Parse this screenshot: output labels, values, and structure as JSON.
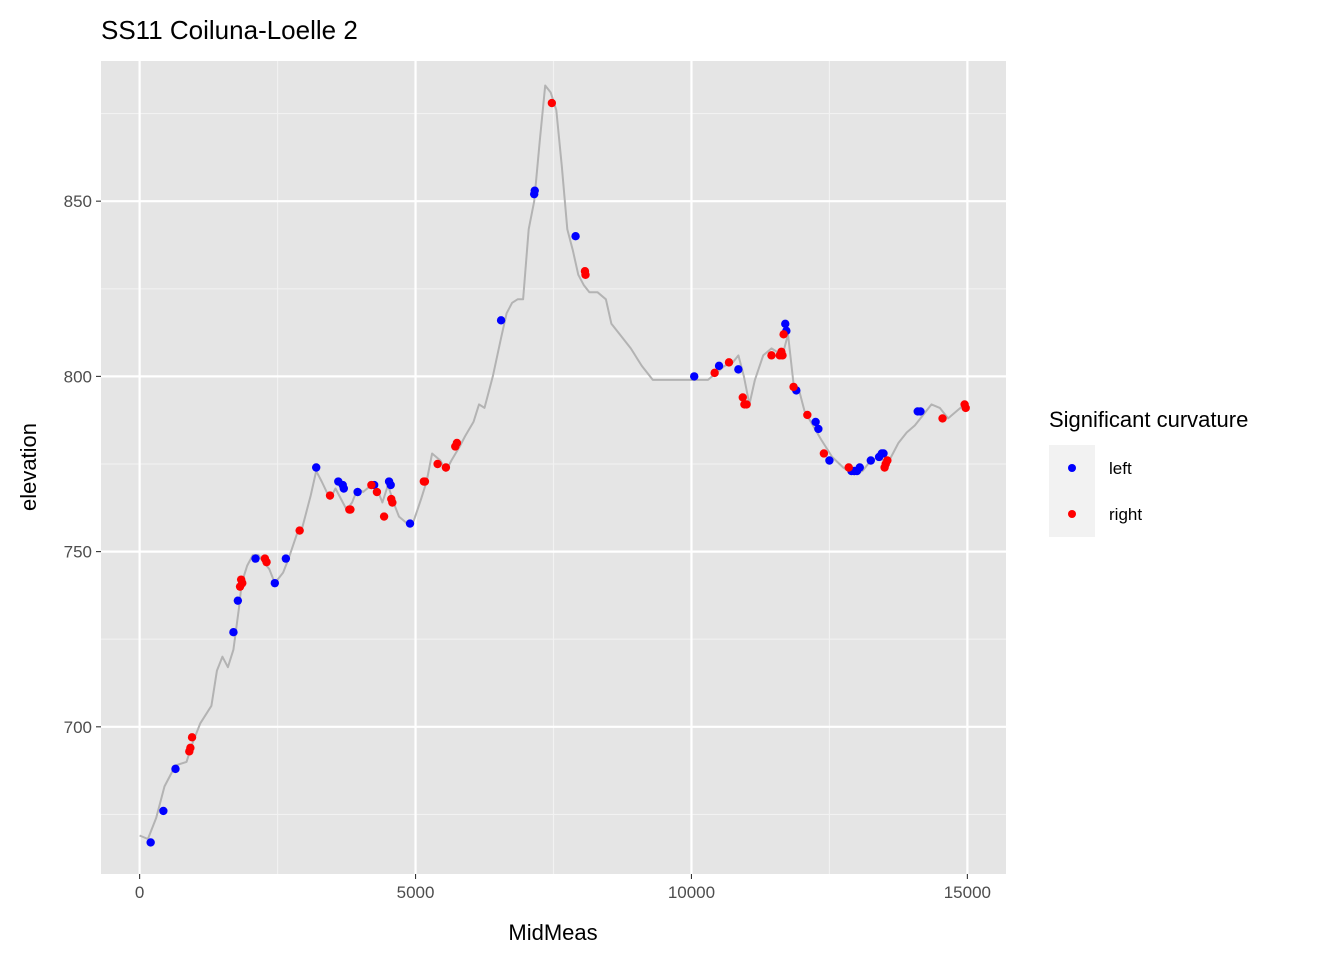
{
  "chart_data": {
    "type": "scatter",
    "title": "SS11 Coiluna-Loelle 2",
    "xlabel": "MidMeas",
    "ylabel": "elevation",
    "xlim": [
      -700,
      15700
    ],
    "ylim": [
      658,
      890
    ],
    "x_ticks": [
      0,
      5000,
      10000,
      15000
    ],
    "x_tick_labels": [
      "0",
      "5000",
      "10000",
      "15000"
    ],
    "y_ticks": [
      700,
      750,
      800,
      850
    ],
    "y_tick_labels": [
      "700",
      "750",
      "800",
      "850"
    ],
    "grid": true,
    "legend": {
      "title": "Significant curvature",
      "position": "right"
    },
    "profile_line": {
      "color": "#b3b3b3",
      "x": [
        0,
        150,
        300,
        450,
        650,
        850,
        950,
        1100,
        1300,
        1400,
        1500,
        1600,
        1700,
        1800,
        1850,
        1950,
        2050,
        2150,
        2250,
        2350,
        2450,
        2600,
        2700,
        2850,
        2950,
        3100,
        3200,
        3300,
        3450,
        3550,
        3650,
        3750,
        3850,
        3950,
        4050,
        4200,
        4300,
        4400,
        4500,
        4600,
        4700,
        4850,
        4950,
        5100,
        5200,
        5300,
        5450,
        5550,
        5650,
        5800,
        5900,
        6050,
        6150,
        6250,
        6400,
        6550,
        6650,
        6750,
        6850,
        6950,
        7050,
        7150,
        7250,
        7350,
        7450,
        7550,
        7650,
        7750,
        7850,
        7950,
        8050,
        8150,
        8300,
        8450,
        8550,
        8700,
        8900,
        9100,
        9300,
        9500,
        9700,
        9900,
        10100,
        10300,
        10450,
        10600,
        10750,
        10850,
        10950,
        11050,
        11150,
        11300,
        11450,
        11550,
        11650,
        11750,
        11850,
        11950,
        12050,
        12200,
        12350,
        12550,
        12750,
        12950,
        13100,
        13250,
        13400,
        13550,
        13650,
        13750,
        13900,
        14050,
        14200,
        14350,
        14500,
        14650,
        14800,
        14950
      ],
      "y": [
        669,
        668,
        674,
        683,
        689,
        690,
        695,
        701,
        706,
        716,
        720,
        717,
        722,
        734,
        741,
        746,
        749,
        749,
        747,
        745,
        741,
        744,
        748,
        755,
        757,
        766,
        773,
        770,
        765,
        768,
        765,
        762,
        764,
        768,
        767,
        769,
        768,
        764,
        769,
        764,
        760,
        758,
        758,
        765,
        770,
        778,
        776,
        773,
        776,
        780,
        783,
        787,
        792,
        791,
        800,
        811,
        818,
        821,
        822,
        822,
        842,
        850,
        867,
        883,
        881,
        876,
        860,
        842,
        836,
        829,
        826,
        824,
        824,
        822,
        815,
        812,
        808,
        803,
        799,
        799,
        799,
        799,
        799,
        799,
        801,
        803,
        804,
        806,
        800,
        792,
        799,
        806,
        808,
        807,
        806,
        812,
        798,
        796,
        790,
        786,
        782,
        777,
        774,
        772,
        773,
        776,
        777,
        775,
        778,
        781,
        784,
        786,
        789,
        792,
        791,
        788,
        790,
        792
      ]
    },
    "series": [
      {
        "name": "left",
        "color": "#0000ff",
        "x": [
          200,
          430,
          650,
          1700,
          1780,
          2100,
          2450,
          2650,
          3200,
          3600,
          3680,
          3700,
          3950,
          4250,
          4520,
          4550,
          4900,
          6550,
          7150,
          7160,
          7900,
          10050,
          10500,
          10850,
          11700,
          11720,
          11900,
          12250,
          12300,
          12500,
          12900,
          12950,
          13000,
          13050,
          13250,
          13400,
          13450,
          13480,
          14100,
          14150
        ],
        "y": [
          667,
          676,
          688,
          727,
          736,
          748,
          741,
          748,
          774,
          770,
          769,
          768,
          767,
          769,
          770,
          769,
          758,
          816,
          852,
          853,
          840,
          800,
          803,
          802,
          815,
          813,
          796,
          787,
          785,
          776,
          773,
          773,
          773,
          774,
          776,
          777,
          778,
          778,
          790,
          790
        ]
      },
      {
        "name": "right",
        "color": "#ff0000",
        "x": [
          900,
          920,
          950,
          1820,
          1840,
          1860,
          2270,
          2300,
          2900,
          3450,
          3800,
          3820,
          4200,
          4300,
          4430,
          4560,
          4580,
          5150,
          5170,
          5400,
          5550,
          5720,
          5750,
          7470,
          8070,
          8080,
          10420,
          10680,
          10930,
          10960,
          11000,
          11450,
          11600,
          11630,
          11650,
          11670,
          11850,
          12100,
          12400,
          12850,
          13500,
          13520,
          13550,
          14550,
          14950,
          14970
        ],
        "y": [
          693,
          694,
          697,
          740,
          742,
          741,
          748,
          747,
          756,
          766,
          762,
          762,
          769,
          767,
          760,
          765,
          764,
          770,
          770,
          775,
          774,
          780,
          781,
          878,
          830,
          829,
          801,
          804,
          794,
          792,
          792,
          806,
          806,
          807,
          806,
          812,
          797,
          789,
          778,
          774,
          774,
          775,
          776,
          788,
          792,
          791
        ]
      }
    ]
  }
}
